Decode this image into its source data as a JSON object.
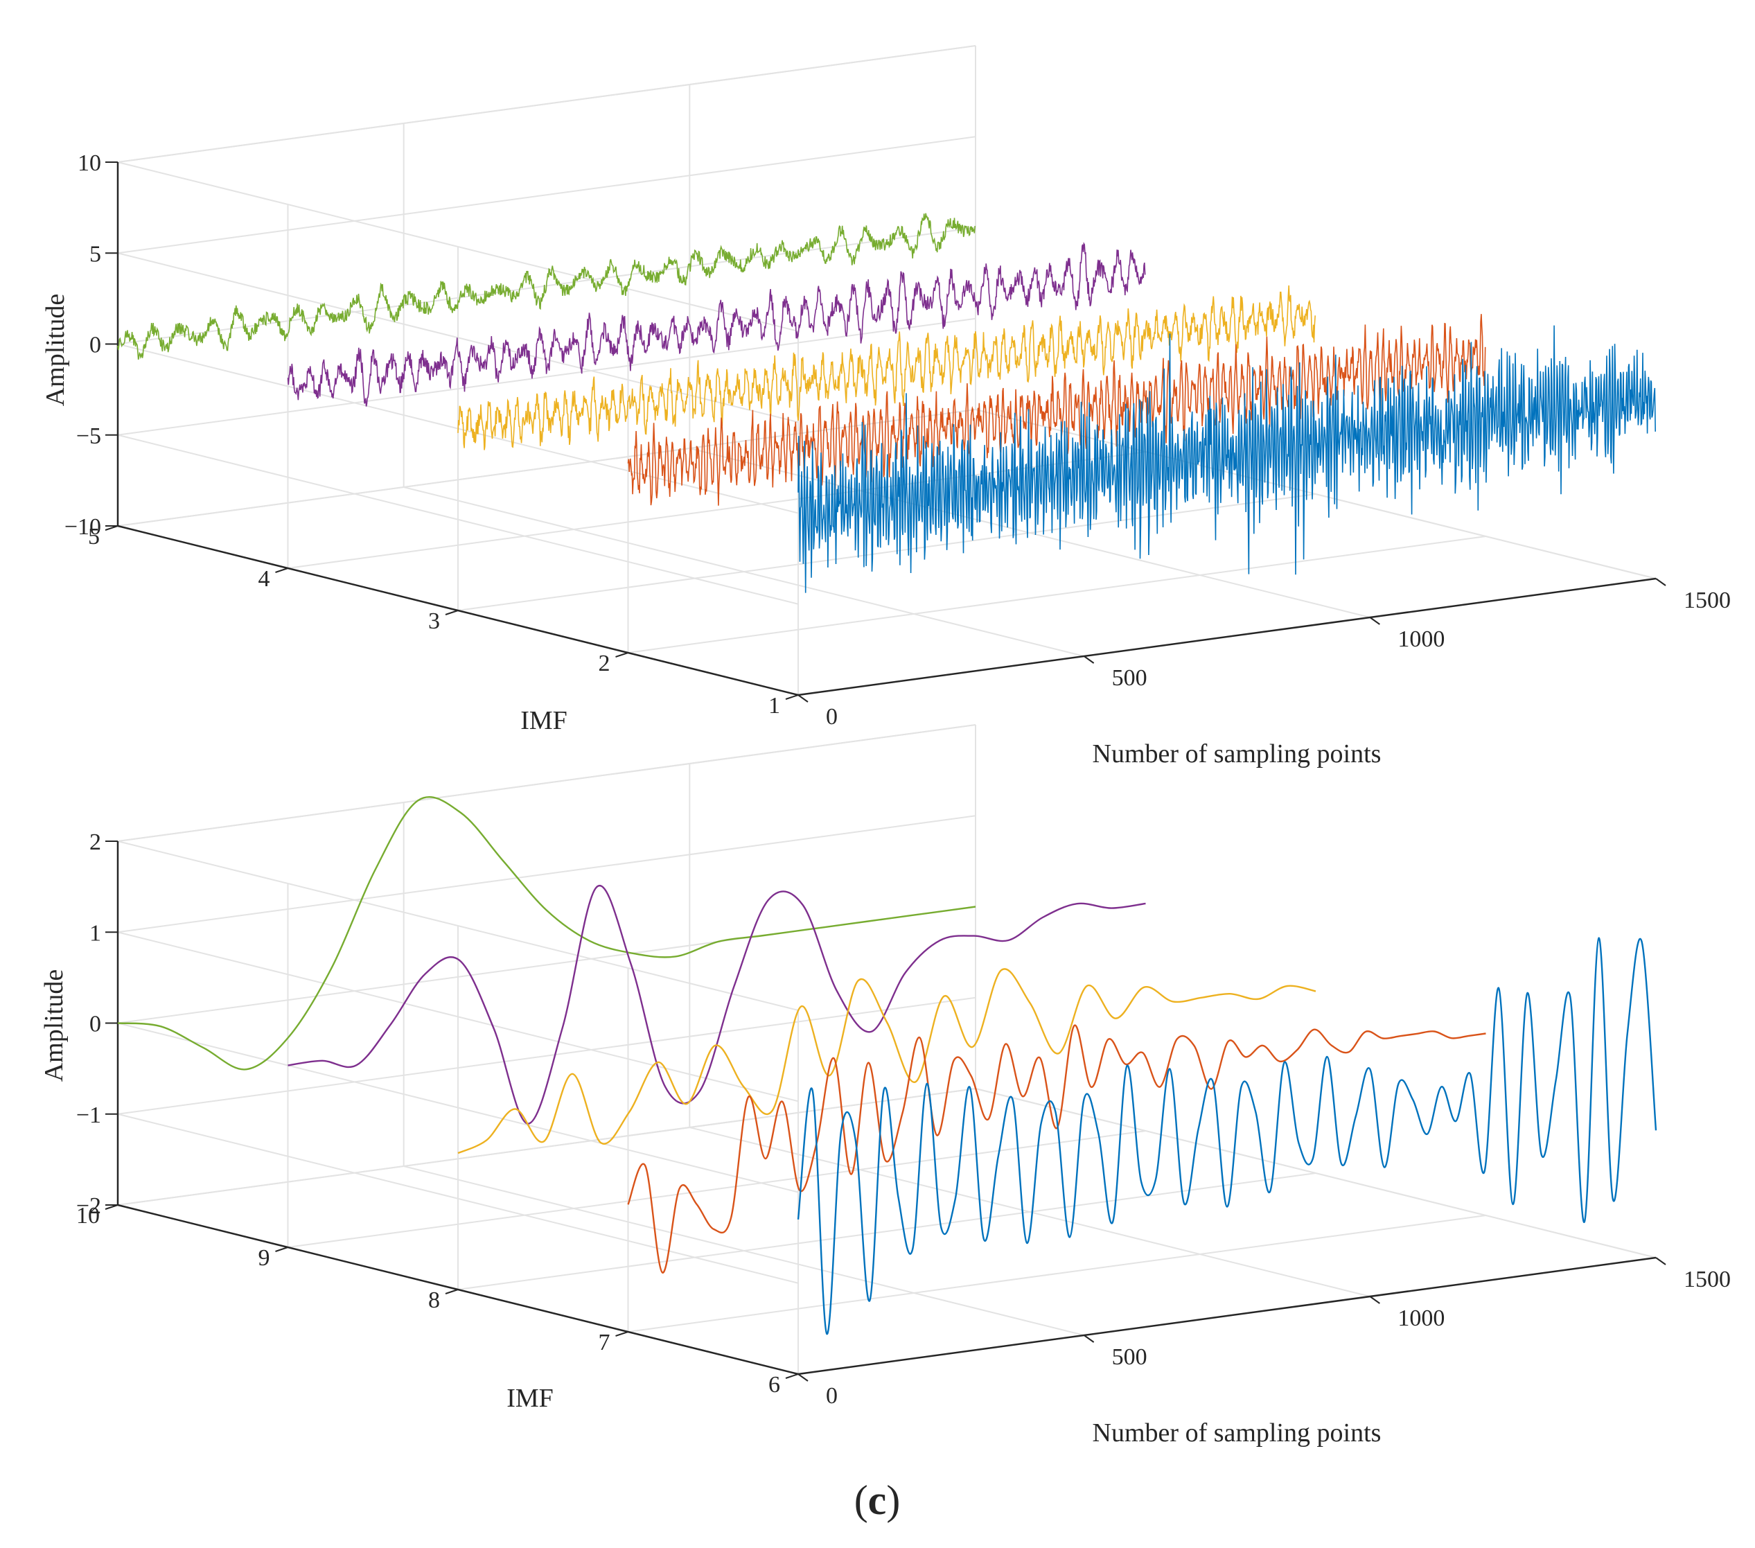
{
  "caption": {
    "open": "(",
    "letter": "c",
    "close": ")"
  },
  "chart_data": [
    {
      "type": "line",
      "view": "3d-waterfall",
      "title": "",
      "xlabel": "Number of sampling points",
      "ylabel": "IMF",
      "zlabel": "Amplitude",
      "xlim": [
        0,
        1500
      ],
      "ylim": [
        1,
        5
      ],
      "zlim": [
        -10,
        10
      ],
      "x_ticks": [
        "0",
        "500",
        "1000",
        "1500"
      ],
      "y_ticks": [
        "1",
        "2",
        "3",
        "4",
        "5"
      ],
      "z_ticks": [
        "10",
        "5",
        "0",
        "−5",
        "−10"
      ],
      "grid": true,
      "samples_per_series": 1500,
      "series": [
        {
          "imf": 1,
          "color": "#0072BD",
          "amplitude": 3.0,
          "dominant_cycles_per_1500": 310,
          "noise_spikes": true
        },
        {
          "imf": 2,
          "color": "#D95319",
          "amplitude": 1.6,
          "dominant_cycles_per_1500": 140
        },
        {
          "imf": 3,
          "color": "#EDB120",
          "amplitude": 1.3,
          "dominant_cycles_per_1500": 90
        },
        {
          "imf": 4,
          "color": "#7E2F8E",
          "amplitude": 1.1,
          "dominant_cycles_per_1500": 52
        },
        {
          "imf": 5,
          "color": "#77AC30",
          "amplitude": 0.8,
          "dominant_cycles_per_1500": 30
        }
      ]
    },
    {
      "type": "line",
      "view": "3d-waterfall",
      "title": "",
      "xlabel": "Number of sampling points",
      "ylabel": "IMF",
      "zlabel": "Amplitude",
      "xlim": [
        0,
        1500
      ],
      "ylim": [
        6,
        10
      ],
      "zlim": [
        -2,
        2
      ],
      "x_ticks": [
        "0",
        "500",
        "1000",
        "1500"
      ],
      "y_ticks": [
        "6",
        "7",
        "8",
        "9",
        "10"
      ],
      "z_ticks": [
        "2",
        "1",
        "0",
        "−1",
        "−2"
      ],
      "grid": true,
      "series": [
        {
          "imf": 6,
          "color": "#0072BD",
          "x": [
            0,
            25,
            50,
            75,
            100,
            125,
            150,
            175,
            200,
            225,
            250,
            275,
            300,
            325,
            350,
            375,
            400,
            425,
            450,
            475,
            500,
            525,
            550,
            575,
            600,
            625,
            650,
            675,
            700,
            725,
            750,
            775,
            800,
            825,
            850,
            875,
            900,
            925,
            950,
            975,
            1000,
            1025,
            1050,
            1075,
            1100,
            1125,
            1150,
            1175,
            1200,
            1225,
            1250,
            1275,
            1300,
            1325,
            1350,
            1375,
            1400,
            1425,
            1450,
            1475,
            1500
          ],
          "z": [
            -0.3,
            1.1,
            -1.6,
            0.6,
            0.5,
            -1.3,
            1.0,
            -0.2,
            -0.8,
            1.0,
            -0.6,
            -0.3,
            0.9,
            -0.8,
            0.1,
            0.7,
            -0.9,
            0.4,
            0.5,
            -0.9,
            0.6,
            0.2,
            -0.8,
            0.9,
            -0.4,
            -0.4,
            0.8,
            -0.7,
            0.1,
            0.6,
            -0.8,
            0.5,
            0.2,
            -0.7,
            0.7,
            -0.2,
            -0.4,
            0.7,
            -0.5,
            0.0,
            0.5,
            -0.6,
            0.3,
            0.1,
            -0.3,
            0.2,
            -0.2,
            0.3,
            -0.8,
            1.2,
            -1.2,
            1.1,
            -0.7,
            0.1,
            1.0,
            -1.5,
            1.6,
            -1.3,
            0.5,
            1.5,
            -0.6
          ]
        },
        {
          "imf": 7,
          "color": "#D95319",
          "x": [
            0,
            30,
            60,
            90,
            120,
            150,
            180,
            210,
            240,
            270,
            300,
            330,
            360,
            390,
            420,
            450,
            480,
            510,
            540,
            570,
            600,
            630,
            660,
            690,
            720,
            750,
            780,
            810,
            840,
            870,
            900,
            930,
            960,
            990,
            1020,
            1050,
            1080,
            1110,
            1140,
            1170,
            1200,
            1230,
            1260,
            1290,
            1320,
            1350,
            1380,
            1410,
            1440,
            1470,
            1500
          ],
          "z": [
            -0.6,
            -0.2,
            -1.4,
            -0.5,
            -0.7,
            -1.0,
            -0.9,
            0.4,
            -0.3,
            0.3,
            -0.7,
            -0.2,
            0.7,
            -0.6,
            0.6,
            -0.5,
            0.0,
            0.8,
            -0.3,
            0.5,
            0.3,
            -0.2,
            0.6,
            0.0,
            0.4,
            -0.4,
            0.7,
            0.0,
            0.5,
            0.2,
            0.3,
            -0.1,
            0.4,
            0.3,
            -0.2,
            0.3,
            0.1,
            0.2,
            0.0,
            0.1,
            0.3,
            0.1,
            0.0,
            0.2,
            0.1,
            0.1,
            0.1,
            0.1,
            0.0,
            0.0,
            0.0
          ]
        },
        {
          "imf": 8,
          "color": "#EDB120",
          "x": [
            0,
            50,
            100,
            150,
            200,
            250,
            300,
            350,
            400,
            450,
            500,
            550,
            600,
            650,
            700,
            750,
            800,
            850,
            900,
            950,
            1000,
            1050,
            1100,
            1150,
            1200,
            1250,
            1300,
            1350,
            1400,
            1450,
            1500
          ],
          "z": [
            -0.5,
            -0.4,
            -0.1,
            -0.5,
            0.2,
            -0.6,
            -0.3,
            0.2,
            -0.3,
            0.3,
            -0.2,
            -0.5,
            0.6,
            -0.2,
            0.8,
            0.3,
            -0.4,
            0.5,
            -0.1,
            0.7,
            0.3,
            -0.3,
            0.4,
            0.0,
            0.3,
            0.1,
            0.1,
            0.1,
            0.0,
            0.1,
            0.0
          ]
        },
        {
          "imf": 9,
          "color": "#7E2F8E",
          "x": [
            0,
            60,
            120,
            180,
            240,
            300,
            360,
            420,
            480,
            540,
            600,
            660,
            720,
            780,
            840,
            900,
            960,
            1020,
            1080,
            1140,
            1200,
            1260,
            1320,
            1380,
            1440,
            1500
          ],
          "z": [
            0.0,
            0.0,
            -0.1,
            0.3,
            0.8,
            0.9,
            0.1,
            -1.0,
            0.0,
            1.5,
            0.6,
            -0.8,
            -0.9,
            0.2,
            1.1,
            1.0,
            0.0,
            -0.5,
            0.1,
            0.4,
            0.4,
            0.3,
            0.5,
            0.6,
            0.5,
            0.5
          ]
        },
        {
          "imf": 10,
          "color": "#77AC30",
          "x": [
            0,
            75,
            150,
            225,
            300,
            375,
            450,
            525,
            600,
            675,
            750,
            825,
            900,
            975,
            1050,
            1125,
            1200,
            1275,
            1350,
            1425,
            1500
          ],
          "z": [
            0.0,
            -0.1,
            -0.4,
            -0.7,
            -0.4,
            0.3,
            1.3,
            2.0,
            1.8,
            1.2,
            0.6,
            0.2,
            0.0,
            -0.1,
            0.0,
            0.0,
            0.0,
            0.0,
            0.0,
            0.0,
            0.0
          ]
        }
      ]
    }
  ]
}
